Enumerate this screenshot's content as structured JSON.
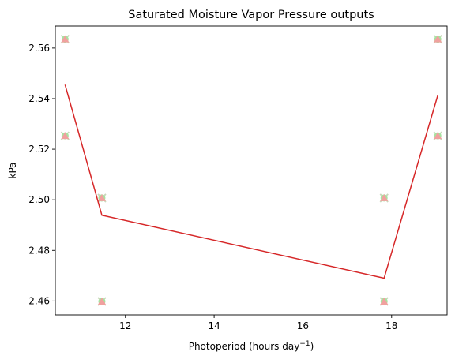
{
  "chart_data": {
    "type": "scatter",
    "title": "Saturated Moisture Vapor Pressure outputs",
    "xlabel": "Photoperiod (hours day",
    "xlabel_superscript": "−1",
    "xlabel_suffix": ")",
    "ylabel": "kPa",
    "xlim": [
      10.42,
      19.25
    ],
    "ylim": [
      2.4545,
      2.5687
    ],
    "grid": false,
    "x_ticks": [
      12,
      14,
      16,
      18
    ],
    "y_ticks": [
      2.46,
      2.48,
      2.5,
      2.52,
      2.54,
      2.56
    ],
    "y_tick_labels": [
      "2.46",
      "2.48",
      "2.50",
      "2.52",
      "2.54",
      "2.56"
    ],
    "series": [
      {
        "marker": "x",
        "color": "#c9d7ba",
        "x": [
          10.64,
          10.64,
          11.47,
          11.47,
          17.83,
          17.83,
          19.04,
          19.04
        ],
        "y": [
          2.5635,
          2.5253,
          2.5007,
          2.4598,
          2.5007,
          2.4598,
          2.5635,
          2.5253
        ]
      },
      {
        "marker": "circle",
        "color": "#a6e4a0",
        "x": [
          10.64,
          10.64,
          11.47,
          11.47,
          17.83,
          17.83,
          19.04,
          19.04
        ],
        "y": [
          2.5635,
          2.5253,
          2.5007,
          2.4598,
          2.5007,
          2.4598,
          2.5635,
          2.5253
        ]
      },
      {
        "marker": "triangle",
        "color": "#f0a19f",
        "x": [
          10.64,
          10.64,
          11.47,
          11.47,
          17.83,
          17.83,
          19.04,
          19.04
        ],
        "y": [
          2.5635,
          2.5253,
          2.5007,
          2.4598,
          2.5007,
          2.4598,
          2.5635,
          2.5253
        ]
      },
      {
        "marker": "line",
        "color": "#d62728",
        "x": [
          10.64,
          11.47,
          17.83,
          19.04
        ],
        "y": [
          2.5455,
          2.4939,
          2.469,
          2.5413
        ]
      }
    ]
  }
}
